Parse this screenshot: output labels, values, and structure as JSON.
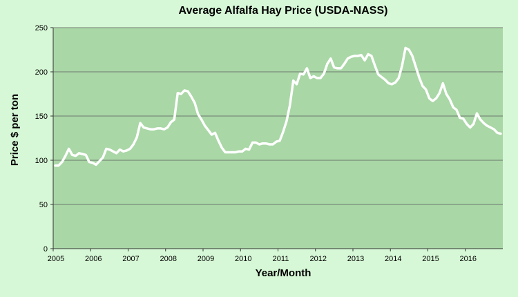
{
  "chart_data": {
    "type": "line",
    "title": "Average Alfalfa Hay Price (USDA-NASS)",
    "xlabel": "Year/Month",
    "ylabel": "Price $ per ton",
    "ylim": [
      0,
      250
    ],
    "yticks": [
      "0",
      "50",
      "100",
      "150",
      "200",
      "250"
    ],
    "xticks": [
      "2005",
      "2006",
      "2007",
      "2008",
      "2009",
      "2010",
      "2011",
      "2012",
      "2013",
      "2014",
      "2015",
      "2016"
    ],
    "x_start": "2005-01",
    "x_end": "2016-12",
    "grid": true,
    "legend": "none",
    "colors": {
      "plot_background": "#a9d7a6",
      "page_background": "#d6f8d6",
      "line": "#ffffff",
      "gridline": "#5a5a5a"
    },
    "series": [
      {
        "values": [
          94,
          94,
          98,
          105,
          113,
          106,
          105,
          108,
          107,
          106,
          98,
          97,
          95,
          99,
          103,
          113,
          112,
          110,
          108,
          112,
          110,
          111,
          113,
          118,
          126,
          142,
          137,
          136,
          135,
          135,
          136,
          136,
          135,
          137,
          143,
          146,
          176,
          175,
          179,
          178,
          172,
          165,
          152,
          146,
          139,
          134,
          129,
          131,
          122,
          114,
          109,
          109,
          109,
          109,
          110,
          110,
          113,
          112,
          120,
          120,
          118,
          119,
          119,
          118,
          118,
          121,
          122,
          132,
          144,
          162,
          190,
          186,
          198,
          197,
          204,
          193,
          195,
          193,
          193,
          198,
          209,
          215,
          205,
          204,
          204,
          209,
          215,
          217,
          218,
          218,
          219,
          213,
          220,
          218,
          207,
          197,
          194,
          191,
          187,
          186,
          188,
          193,
          207,
          227,
          225,
          218,
          206,
          194,
          184,
          180,
          170,
          167,
          170,
          176,
          187,
          175,
          169,
          160,
          157,
          148,
          147,
          141,
          137,
          141,
          153,
          146,
          142,
          139,
          137,
          135,
          131,
          130
        ]
      }
    ]
  }
}
